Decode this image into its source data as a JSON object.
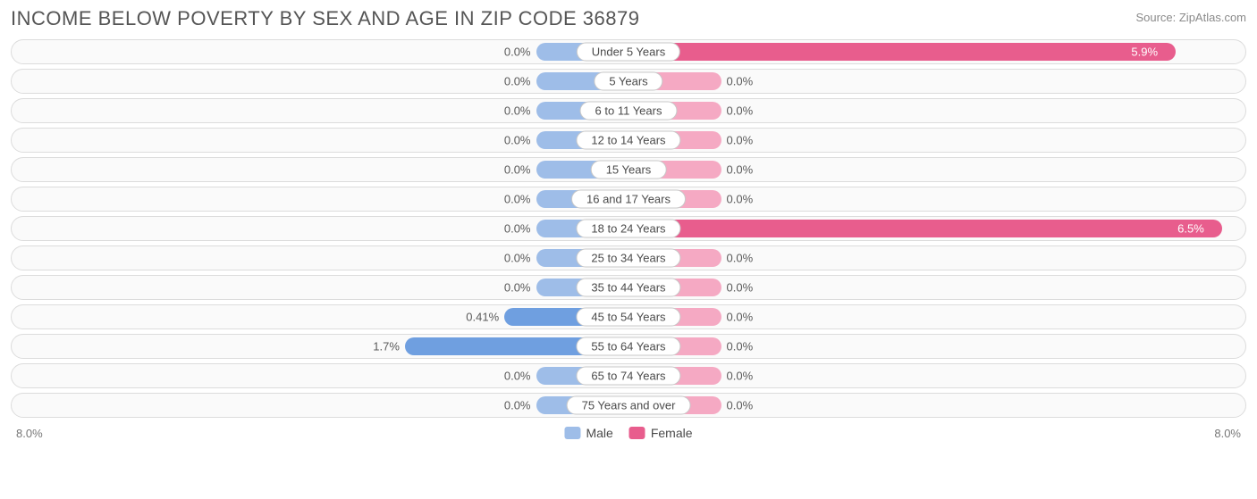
{
  "title": "INCOME BELOW POVERTY BY SEX AND AGE IN ZIP CODE 36879",
  "source": "Source: ZipAtlas.com",
  "axis_max_pct": 8.0,
  "axis_label_left": "8.0%",
  "axis_label_right": "8.0%",
  "track_border_color": "#dcdcdc",
  "track_bg_color": "#fafafa",
  "text_color": "#4a4a4a",
  "colors": {
    "male": "#9ebde8",
    "male_hi": "#6f9fe0",
    "female": "#f5a9c3",
    "female_hi": "#e85d8d"
  },
  "base_bar_pct": 1.2,
  "legend": {
    "male": "Male",
    "female": "Female"
  },
  "rows": [
    {
      "label": "Under 5 Years",
      "male": 0.0,
      "female": 5.9,
      "male_txt": "0.0%",
      "female_txt": "5.9%"
    },
    {
      "label": "5 Years",
      "male": 0.0,
      "female": 0.0,
      "male_txt": "0.0%",
      "female_txt": "0.0%"
    },
    {
      "label": "6 to 11 Years",
      "male": 0.0,
      "female": 0.0,
      "male_txt": "0.0%",
      "female_txt": "0.0%"
    },
    {
      "label": "12 to 14 Years",
      "male": 0.0,
      "female": 0.0,
      "male_txt": "0.0%",
      "female_txt": "0.0%"
    },
    {
      "label": "15 Years",
      "male": 0.0,
      "female": 0.0,
      "male_txt": "0.0%",
      "female_txt": "0.0%"
    },
    {
      "label": "16 and 17 Years",
      "male": 0.0,
      "female": 0.0,
      "male_txt": "0.0%",
      "female_txt": "0.0%"
    },
    {
      "label": "18 to 24 Years",
      "male": 0.0,
      "female": 6.5,
      "male_txt": "0.0%",
      "female_txt": "6.5%"
    },
    {
      "label": "25 to 34 Years",
      "male": 0.0,
      "female": 0.0,
      "male_txt": "0.0%",
      "female_txt": "0.0%"
    },
    {
      "label": "35 to 44 Years",
      "male": 0.0,
      "female": 0.0,
      "male_txt": "0.0%",
      "female_txt": "0.0%"
    },
    {
      "label": "45 to 54 Years",
      "male": 0.41,
      "female": 0.0,
      "male_txt": "0.41%",
      "female_txt": "0.0%"
    },
    {
      "label": "55 to 64 Years",
      "male": 1.7,
      "female": 0.0,
      "male_txt": "1.7%",
      "female_txt": "0.0%"
    },
    {
      "label": "65 to 74 Years",
      "male": 0.0,
      "female": 0.0,
      "male_txt": "0.0%",
      "female_txt": "0.0%"
    },
    {
      "label": "75 Years and over",
      "male": 0.0,
      "female": 0.0,
      "male_txt": "0.0%",
      "female_txt": "0.0%"
    }
  ]
}
